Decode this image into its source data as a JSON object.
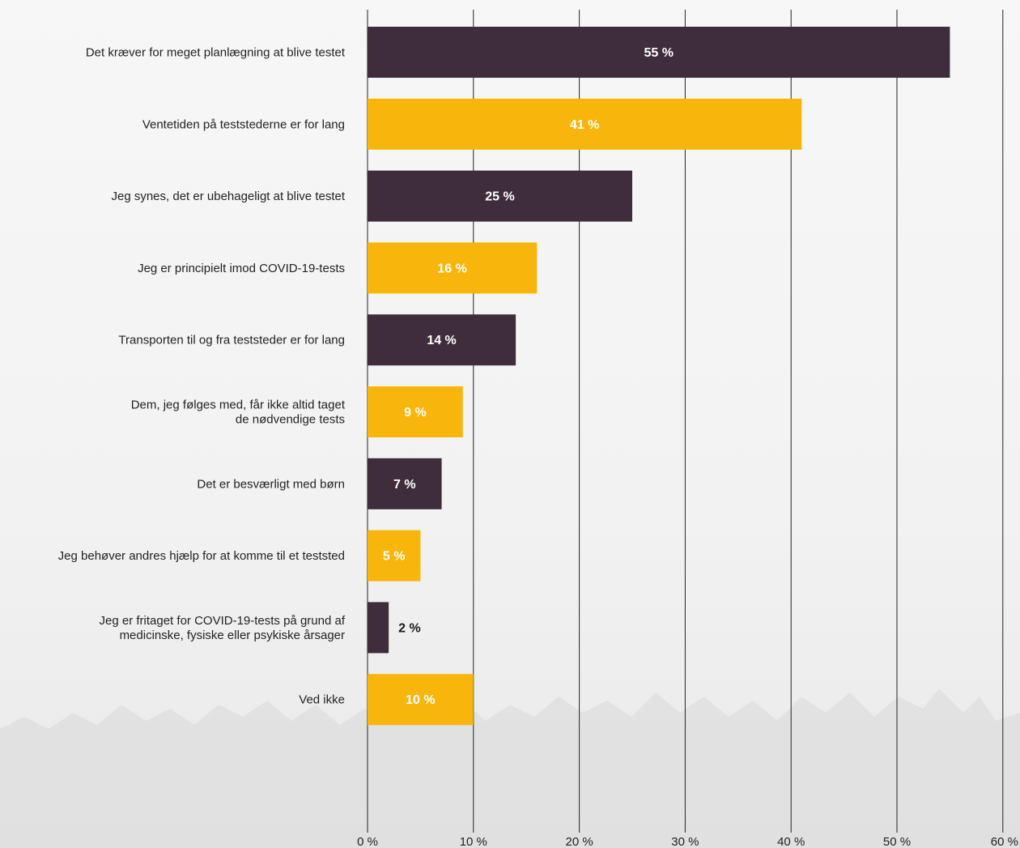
{
  "chart_data": {
    "type": "bar",
    "orientation": "horizontal",
    "title": "",
    "xlabel": "",
    "ylabel": "",
    "categories": [
      [
        "Det kræver for meget planlægning at blive testet"
      ],
      [
        "Ventetiden på teststederne er for lang"
      ],
      [
        "Jeg synes, det er ubehageligt at blive testet"
      ],
      [
        "Jeg er principielt imod COVID-19-tests"
      ],
      [
        "Transporten til og fra teststeder er for lang"
      ],
      [
        "Dem, jeg følges med, får ikke altid taget",
        "de nødvendige tests"
      ],
      [
        "Det er besværligt med børn"
      ],
      [
        "Jeg behøver andres hjælp for at komme til et teststed"
      ],
      [
        "Jeg er fritaget for COVID-19-tests på grund af",
        "medicinske, fysiske eller psykiske årsager"
      ],
      [
        "Ved ikke"
      ]
    ],
    "values": [
      55,
      41,
      25,
      16,
      14,
      9,
      7,
      5,
      2,
      10
    ],
    "data_labels": [
      "55 %",
      "41 %",
      "25 %",
      "16 %",
      "14 %",
      "9 %",
      "7 %",
      "5 %",
      "2 %",
      "10 %"
    ],
    "xlim": [
      0,
      60
    ],
    "x_ticks": [
      0,
      10,
      20,
      30,
      40,
      50,
      60
    ],
    "x_tick_labels": [
      "0 %",
      "10 %",
      "20 %",
      "30 %",
      "40 %",
      "50 %",
      "60 %"
    ],
    "grid": "vertical",
    "legend": "none",
    "colors": {
      "dark": "#3f2d3b",
      "yellow": "#f8b50b",
      "grid": "#222222",
      "label_on_bar": "#ffffff",
      "label_outside": "#1a1a1a"
    },
    "bar_color_pattern": [
      "dark",
      "yellow"
    ]
  }
}
